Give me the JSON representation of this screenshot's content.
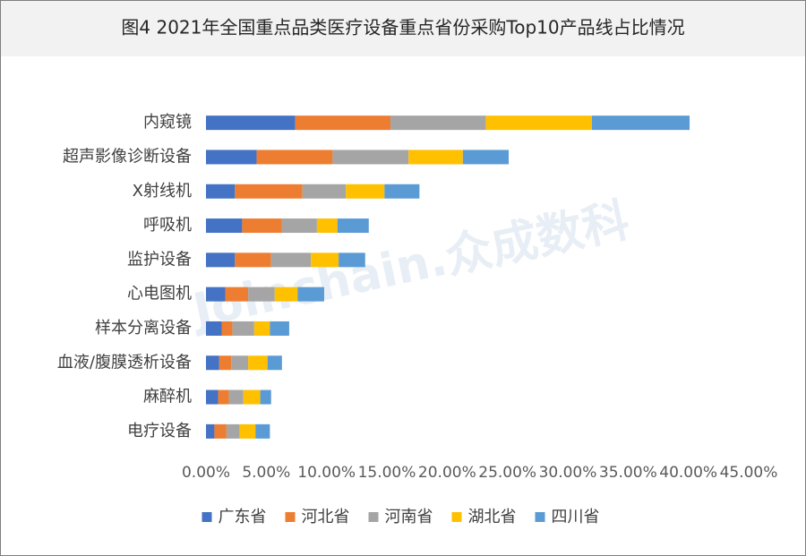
{
  "chart_data": {
    "type": "stacked_barh",
    "title": "图4 2021年全国重点品类医疗设备重点省份采购Top10产品线占比情况",
    "watermark": "Joinchain.众成数科",
    "categories": [
      "内窥镜",
      "超声影像诊断设备",
      "X射线机",
      "呼吸机",
      "监护设备",
      "心电图机",
      "样本分离设备",
      "血液/腹膜透析设备",
      "麻醉机",
      "电疗设备"
    ],
    "series": [
      {
        "name": "广东省",
        "color": "#4472c4",
        "values": [
          7.4,
          4.2,
          2.4,
          3.0,
          2.4,
          1.6,
          1.3,
          1.1,
          1.0,
          0.7
        ]
      },
      {
        "name": "河北省",
        "color": "#ed7d31",
        "values": [
          7.9,
          6.3,
          5.6,
          3.3,
          3.0,
          1.9,
          0.9,
          1.0,
          0.9,
          1.0
        ]
      },
      {
        "name": "河南省",
        "color": "#a5a5a5",
        "values": [
          7.9,
          6.3,
          3.6,
          2.9,
          3.3,
          2.2,
          1.8,
          1.4,
          1.2,
          1.1
        ]
      },
      {
        "name": "湖北省",
        "color": "#ffc000",
        "values": [
          8.8,
          4.5,
          3.2,
          1.7,
          2.3,
          1.9,
          1.3,
          1.6,
          1.4,
          1.3
        ]
      },
      {
        "name": "四川省",
        "color": "#5b9bd5",
        "values": [
          8.1,
          3.8,
          2.9,
          2.6,
          2.2,
          2.2,
          1.6,
          1.2,
          0.9,
          1.2
        ]
      }
    ],
    "xlim": [
      0,
      45
    ],
    "xticks": [
      {
        "value": 0,
        "label": "0.00%"
      },
      {
        "value": 5,
        "label": "5.00%"
      },
      {
        "value": 10,
        "label": "10.00%"
      },
      {
        "value": 15,
        "label": "15.00%"
      },
      {
        "value": 20,
        "label": "20.00%"
      },
      {
        "value": 25,
        "label": "25.00%"
      },
      {
        "value": 30,
        "label": "30.00%"
      },
      {
        "value": 35,
        "label": "35.00%"
      },
      {
        "value": 40,
        "label": "40.00%"
      },
      {
        "value": 45,
        "label": "45.00%"
      }
    ],
    "grid": false,
    "legend": "bottom"
  }
}
